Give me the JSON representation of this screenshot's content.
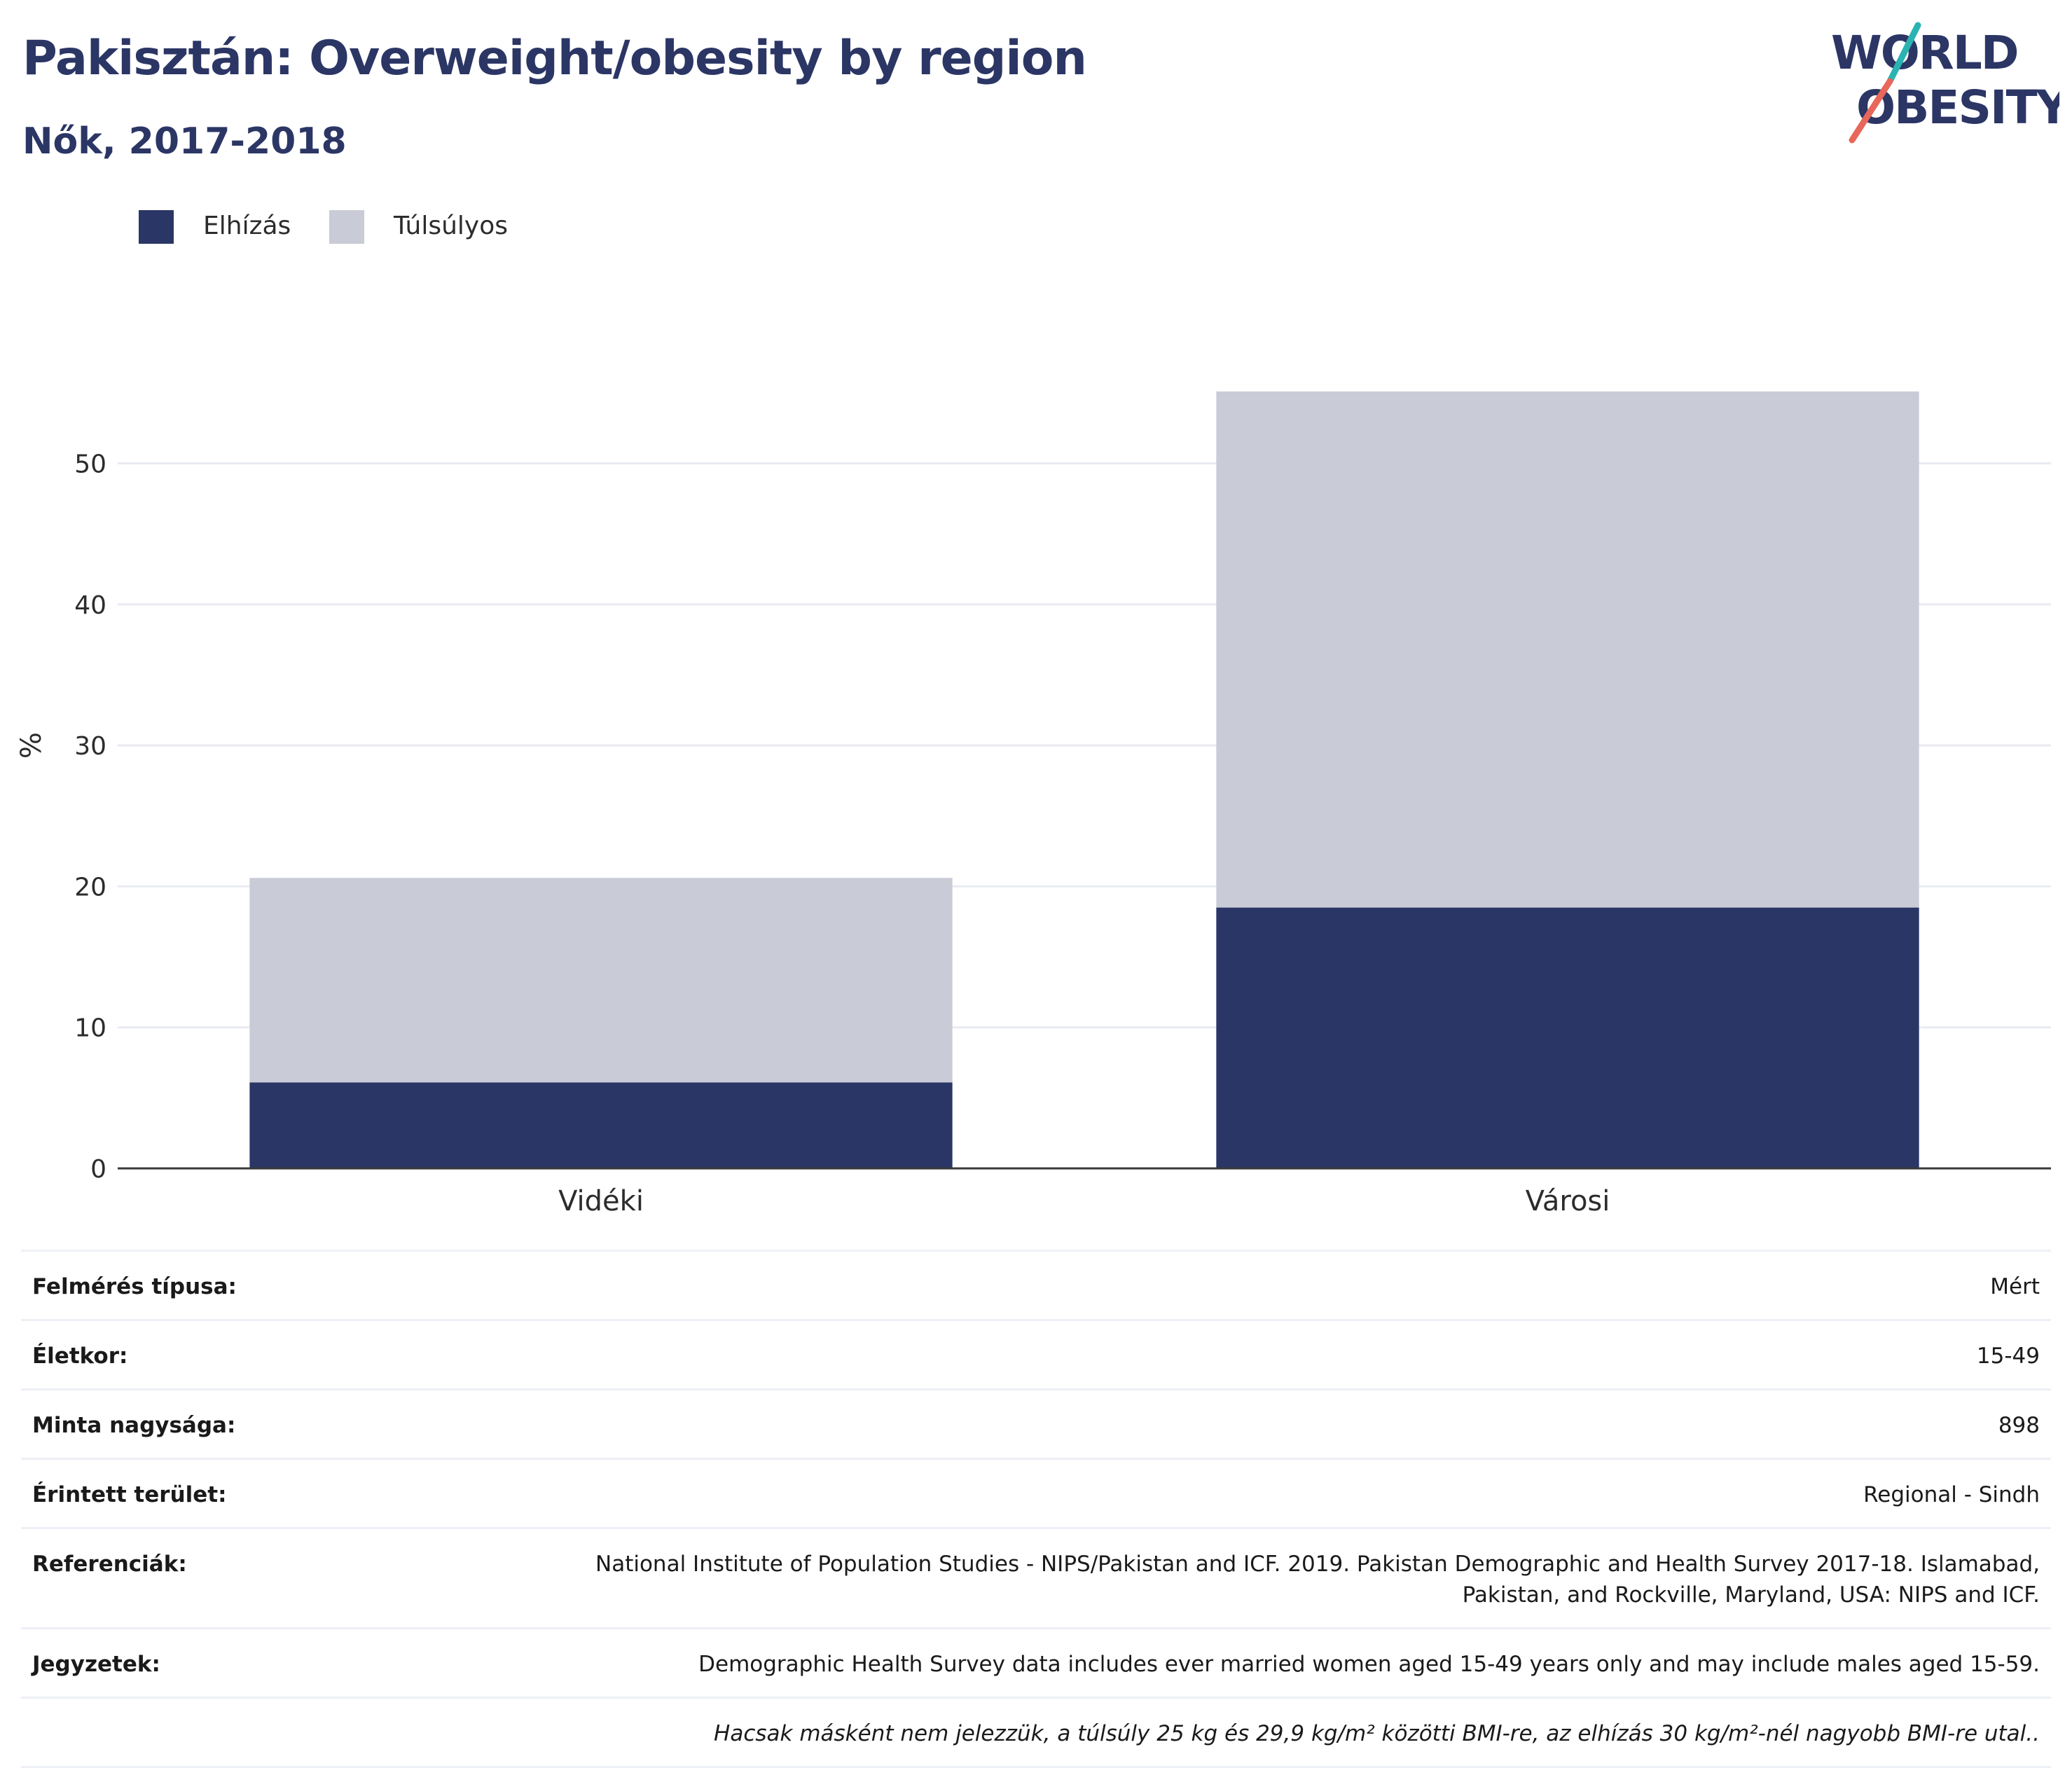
{
  "header": {
    "title": "Pakisztán: Overweight/obesity by region",
    "subtitle": "Nők, 2017-2018"
  },
  "logo": {
    "line1": "WORLD",
    "line2": "OBESITY",
    "accent_colors": [
      "#2ab3b1",
      "#e8675a"
    ],
    "text_color": "#2b3665"
  },
  "legend": [
    {
      "label": "Elhízás",
      "color": "#2a3665"
    },
    {
      "label": "Túlsúlyos",
      "color": "#c9cbd6"
    }
  ],
  "chart_data": {
    "type": "bar",
    "stacked": true,
    "categories": [
      "Vidéki",
      "Városi"
    ],
    "series": [
      {
        "name": "Elhízás",
        "values": [
          6.1,
          18.5
        ],
        "color": "#2a3665"
      },
      {
        "name": "Túlsúlyos",
        "values": [
          14.5,
          36.6
        ],
        "color": "#c9cbd6"
      }
    ],
    "ylabel": "%",
    "ylim": [
      0,
      60
    ],
    "yticks": [
      0,
      10,
      20,
      30,
      40,
      50
    ],
    "grid": true,
    "legend_position": "top-left"
  },
  "info": [
    {
      "key": "Felmérés típusa:",
      "value": "Mért"
    },
    {
      "key": "Életkor:",
      "value": "15-49"
    },
    {
      "key": "Minta nagysága:",
      "value": "898"
    },
    {
      "key": "Érintett terület:",
      "value": "Regional - Sindh"
    },
    {
      "key": "Referenciák:",
      "value": "National Institute of Population Studies - NIPS/Pakistan and ICF. 2019. Pakistan Demographic and Health Survey 2017-18. Islamabad, Pakistan, and Rockville, Maryland, USA: NIPS and ICF."
    },
    {
      "key": "Jegyzetek:",
      "value": "Demographic Health Survey data includes ever married women aged 15-49 years only and may include males aged 15-59."
    }
  ],
  "footnote": "Hacsak másként nem jelezzük, a túlsúly 25 kg és 29,9 kg/m² közötti BMI-re, az elhízás 30 kg/m²-nél nagyobb BMI-re utal.."
}
